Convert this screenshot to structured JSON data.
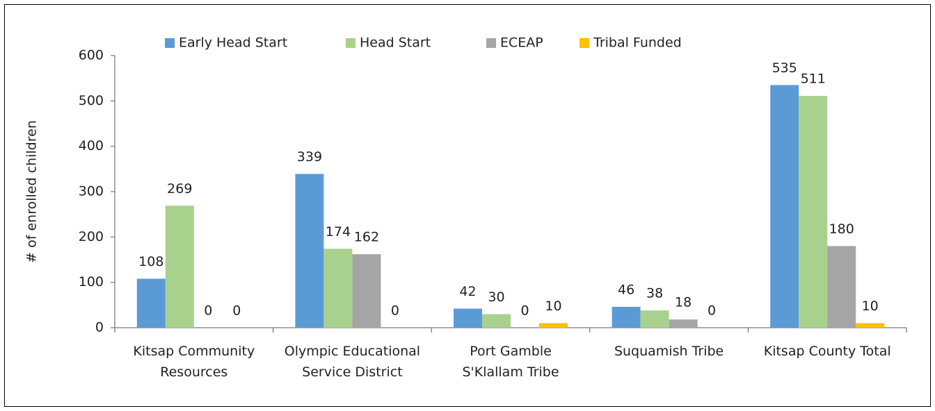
{
  "chart_data": {
    "type": "bar",
    "y_label": "# of enrolled children",
    "categories": [
      "Kitsap Community\nResources",
      "Olympic Educational\nService District",
      "Port Gamble\nS'Klallam Tribe",
      "Suquamish Tribe",
      "Kitsap County Total"
    ],
    "series": [
      {
        "name": "Early Head Start",
        "color": "#5b9bd5",
        "values": [
          108,
          339,
          42,
          46,
          535
        ]
      },
      {
        "name": "Head Start",
        "color": "#a9d18e",
        "values": [
          269,
          174,
          30,
          38,
          511
        ]
      },
      {
        "name": "ECEAP",
        "color": "#a5a5a5",
        "values": [
          0,
          162,
          0,
          18,
          180
        ]
      },
      {
        "name": "Tribal Funded",
        "color": "#ffc000",
        "values": [
          0,
          0,
          10,
          0,
          10
        ]
      }
    ],
    "ylim": [
      0,
      600
    ],
    "yticks": [
      0,
      100,
      200,
      300,
      400,
      500,
      600
    ],
    "legend": "top"
  }
}
